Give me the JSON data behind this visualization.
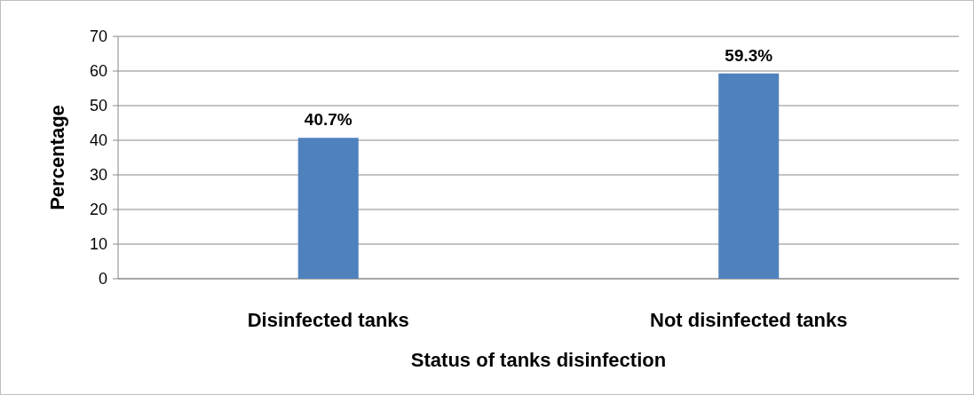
{
  "chart_data": {
    "type": "bar",
    "xlabel": "Status of tanks disinfection",
    "ylabel": "Percentage",
    "categories": [
      "Disinfected tanks",
      "Not disinfected tanks"
    ],
    "values": [
      40.7,
      59.3
    ],
    "color": "#4f81bd",
    "value_labels": [
      "40.7%",
      "59.3%"
    ],
    "ylim": [
      0,
      70
    ],
    "yticks": [
      0,
      10,
      20,
      30,
      40,
      50,
      60,
      70
    ],
    "grid": "y"
  }
}
